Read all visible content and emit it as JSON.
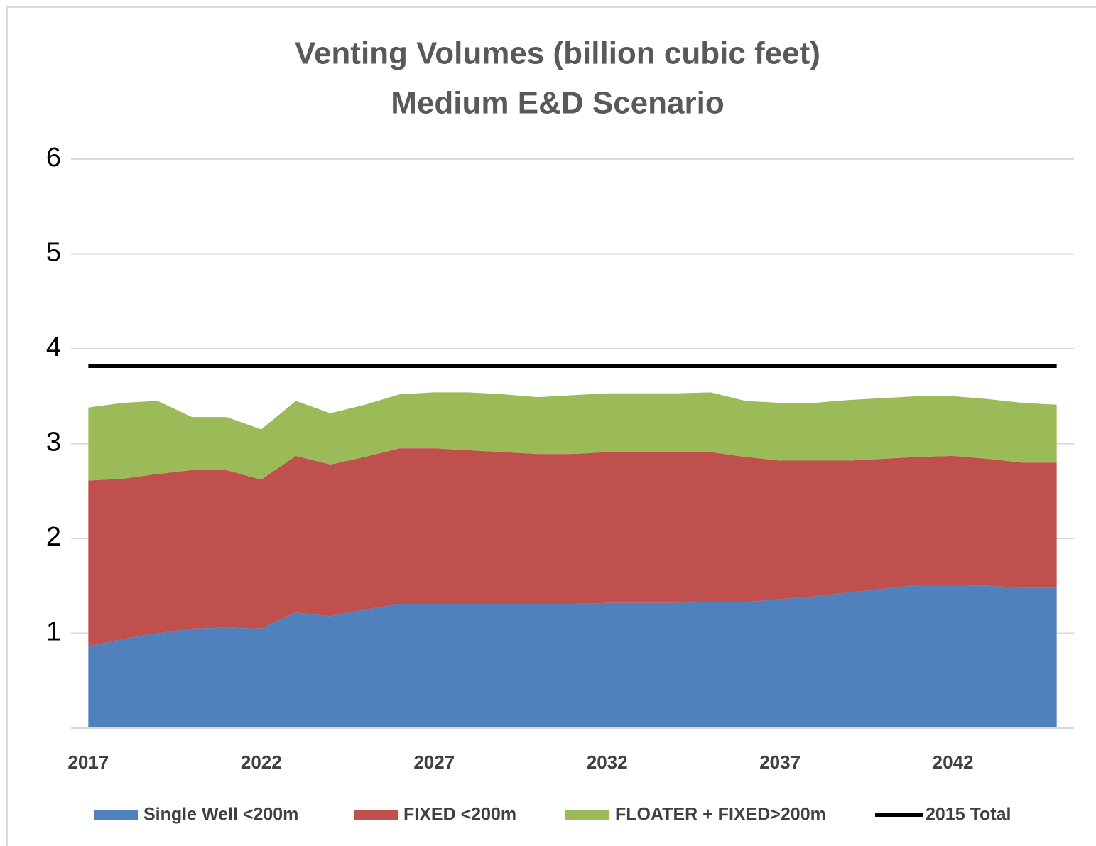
{
  "chart_data": {
    "type": "stacked_area_line",
    "title": "Venting Volumes (billion cubic feet)",
    "subtitle": "Medium E&D Scenario",
    "categories": [
      "2017",
      null,
      null,
      null,
      null,
      "2022",
      null,
      null,
      null,
      null,
      "2027",
      null,
      null,
      null,
      null,
      "2032",
      null,
      null,
      null,
      null,
      "2037",
      null,
      null,
      null,
      null,
      "2042",
      null,
      null,
      null
    ],
    "series": [
      {
        "name": "Single Well <200m",
        "color": "#4f81bd",
        "kind": "area",
        "values": [
          0.86,
          0.94,
          1.0,
          1.05,
          1.06,
          1.05,
          1.22,
          1.18,
          1.25,
          1.31,
          1.31,
          1.31,
          1.31,
          1.31,
          1.31,
          1.32,
          1.32,
          1.32,
          1.33,
          1.33,
          1.36,
          1.39,
          1.43,
          1.47,
          1.51,
          1.51,
          1.5,
          1.48,
          1.48
        ]
      },
      {
        "name": "FIXED <200m",
        "color": "#c0504d",
        "kind": "area",
        "values": [
          1.75,
          1.69,
          1.68,
          1.67,
          1.66,
          1.57,
          1.65,
          1.6,
          1.61,
          1.64,
          1.64,
          1.62,
          1.6,
          1.58,
          1.58,
          1.59,
          1.59,
          1.59,
          1.58,
          1.53,
          1.46,
          1.43,
          1.39,
          1.37,
          1.35,
          1.36,
          1.34,
          1.32,
          1.32
        ]
      },
      {
        "name": "FLOATER + FIXED>200m",
        "color": "#9bbb59",
        "kind": "area",
        "values": [
          0.77,
          0.8,
          0.77,
          0.56,
          0.56,
          0.53,
          0.58,
          0.54,
          0.55,
          0.57,
          0.59,
          0.61,
          0.61,
          0.6,
          0.62,
          0.62,
          0.62,
          0.62,
          0.63,
          0.59,
          0.61,
          0.61,
          0.64,
          0.64,
          0.64,
          0.63,
          0.63,
          0.63,
          0.61
        ]
      },
      {
        "name": "2015 Total",
        "color": "#000000",
        "kind": "line",
        "values": [
          3.82,
          3.82,
          3.82,
          3.82,
          3.82,
          3.82,
          3.82,
          3.82,
          3.82,
          3.82,
          3.82,
          3.82,
          3.82,
          3.82,
          3.82,
          3.82,
          3.82,
          3.82,
          3.82,
          3.82,
          3.82,
          3.82,
          3.82,
          3.82,
          3.82,
          3.82,
          3.82,
          3.82,
          3.82
        ]
      }
    ],
    "ylim": [
      0,
      6
    ],
    "yticks": [
      1,
      2,
      3,
      4,
      5,
      6
    ],
    "grid": true,
    "legend": "bottom"
  }
}
